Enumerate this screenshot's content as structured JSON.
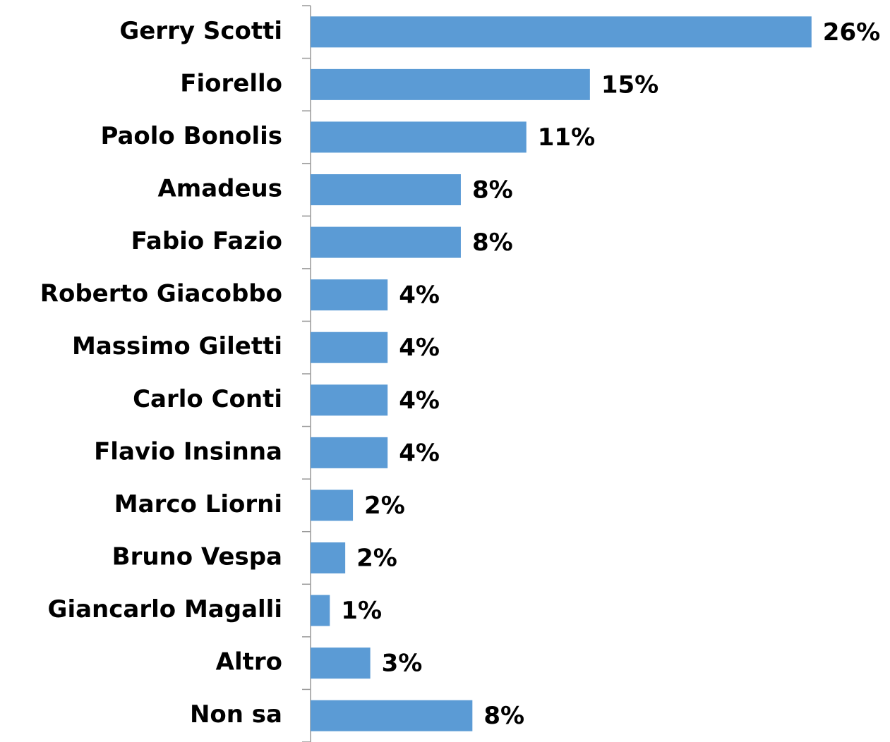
{
  "chart_data": {
    "type": "hbar",
    "categories": [
      "Gerry Scotti",
      "Fiorello",
      "Paolo Bonolis",
      "Amadeus",
      "Fabio Fazio",
      "Roberto Giacobbo",
      "Massimo Giletti",
      "Carlo Conti",
      "Flavio Insinna",
      "Marco Liorni",
      "Bruno Vespa",
      "Giancarlo Magalli",
      "Altro",
      "Non sa"
    ],
    "values": [
      26,
      14.5,
      11.2,
      7.8,
      7.8,
      4,
      4,
      4,
      4,
      2.2,
      1.8,
      1,
      3.1,
      8.4
    ],
    "value_labels": [
      "26%",
      "15%",
      "11%",
      "8%",
      "8%",
      "4%",
      "4%",
      "4%",
      "4%",
      "2%",
      "2%",
      "1%",
      "3%",
      "8%"
    ],
    "color": "#5b9bd5",
    "xlim": [
      0,
      30
    ]
  }
}
